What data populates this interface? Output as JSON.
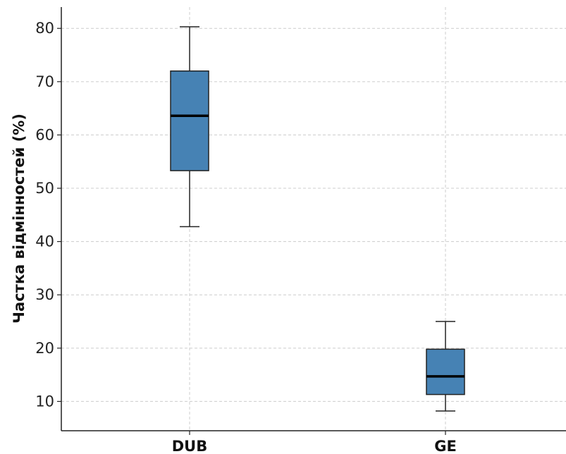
{
  "chart_data": {
    "type": "box",
    "title": "",
    "xlabel": "",
    "ylabel": "Частка відмінностей (%)",
    "ylim": [
      4.5,
      84
    ],
    "yticks": [
      10,
      20,
      30,
      40,
      50,
      60,
      70,
      80
    ],
    "grid": true,
    "categories": [
      "DUB",
      "GE"
    ],
    "boxes": [
      {
        "category": "DUB",
        "whisker_low": 42.8,
        "q1": 53.3,
        "median": 63.6,
        "q3": 72.0,
        "whisker_high": 80.3
      },
      {
        "category": "GE",
        "whisker_low": 8.2,
        "q1": 11.3,
        "median": 14.7,
        "q3": 19.8,
        "whisker_high": 25.0
      }
    ],
    "colors": {
      "box_fill": "#4682b4",
      "box_edge": "#222222",
      "median": "#000000",
      "grid": "#cccccc",
      "axis": "#222222"
    }
  }
}
